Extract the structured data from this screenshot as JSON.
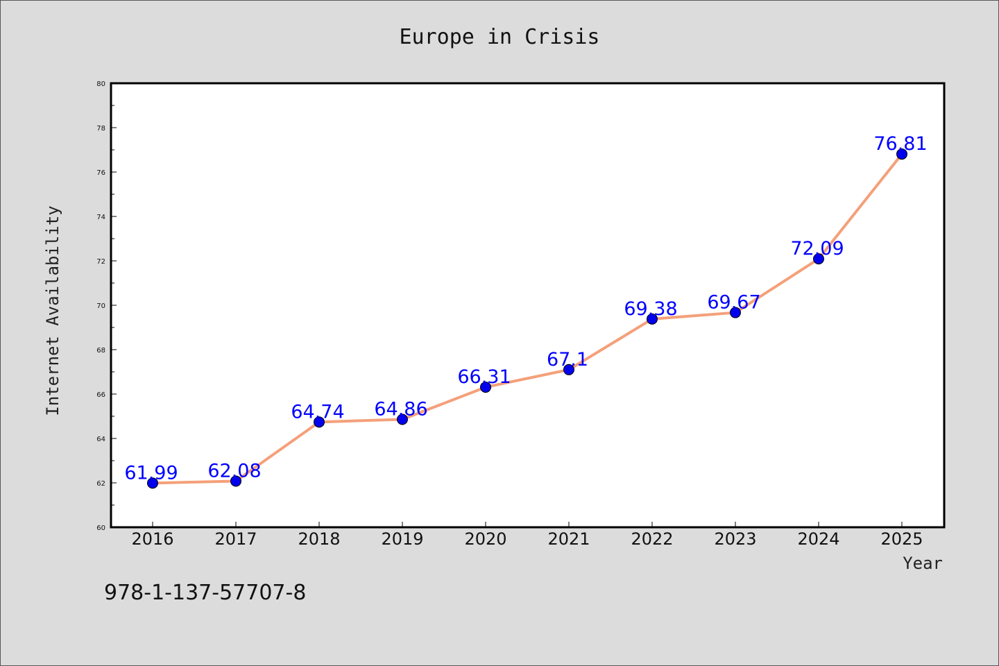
{
  "chart_data": {
    "type": "line",
    "title": "Europe in Crisis",
    "xlabel": "Year",
    "ylabel": "Internet Availability",
    "categories": [
      "2016",
      "2017",
      "2018",
      "2019",
      "2020",
      "2021",
      "2022",
      "2023",
      "2024",
      "2025"
    ],
    "values": [
      61.99,
      62.08,
      64.74,
      64.86,
      66.31,
      67.1,
      69.38,
      69.67,
      72.09,
      76.81
    ],
    "data_labels": [
      "61.99",
      "62.08",
      "64.74",
      "64.86",
      "66.31",
      "67.1",
      "69.38",
      "69.67",
      "72.09",
      "76.81"
    ],
    "ylim": [
      60,
      80
    ],
    "yticks": [
      60,
      62,
      64,
      66,
      68,
      70,
      72,
      74,
      76,
      78,
      80
    ],
    "grid": false,
    "line_color": "#f4a07a",
    "marker_color": "#0000ee",
    "label_color": "#0000ff"
  },
  "footer": {
    "isbn": "978-1-137-57707-8"
  }
}
